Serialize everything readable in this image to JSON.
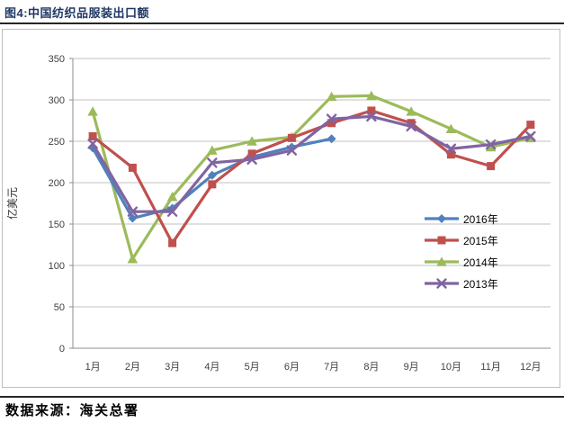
{
  "header": {
    "title": "图4:中国纺织品服装出口额"
  },
  "footer": {
    "source": "数据来源：海关总署"
  },
  "chart_data": {
    "type": "line",
    "title": "",
    "xlabel": "",
    "ylabel": "亿美元",
    "ylim": [
      0,
      350
    ],
    "y_ticks": [
      0,
      50,
      100,
      150,
      200,
      250,
      300,
      350
    ],
    "grid": true,
    "legend_position": "inside-middle-right",
    "categories": [
      "1月",
      "2月",
      "3月",
      "4月",
      "5月",
      "6月",
      "7月",
      "8月",
      "9月",
      "10月",
      "11月",
      "12月"
    ],
    "series": [
      {
        "name": "2016年",
        "color": "#4F81BD",
        "marker": "diamond",
        "values": [
          242,
          157,
          169,
          209,
          231,
          243,
          253,
          null,
          null,
          null,
          null,
          null
        ]
      },
      {
        "name": "2015年",
        "color": "#C0504D",
        "marker": "square",
        "values": [
          256,
          218,
          127,
          198,
          235,
          254,
          272,
          287,
          272,
          234,
          220,
          270
        ]
      },
      {
        "name": "2014年",
        "color": "#9BBB59",
        "marker": "triangle",
        "values": [
          286,
          108,
          183,
          239,
          250,
          255,
          304,
          305,
          286,
          265,
          243,
          254
        ]
      },
      {
        "name": "2013年",
        "color": "#8064A2",
        "marker": "x",
        "values": [
          247,
          165,
          165,
          224,
          228,
          239,
          277,
          280,
          268,
          241,
          246,
          256
        ]
      }
    ],
    "colors": {
      "grid": "#c0c0c0",
      "axis": "#8e8e8e",
      "title": "#1F3864"
    }
  }
}
